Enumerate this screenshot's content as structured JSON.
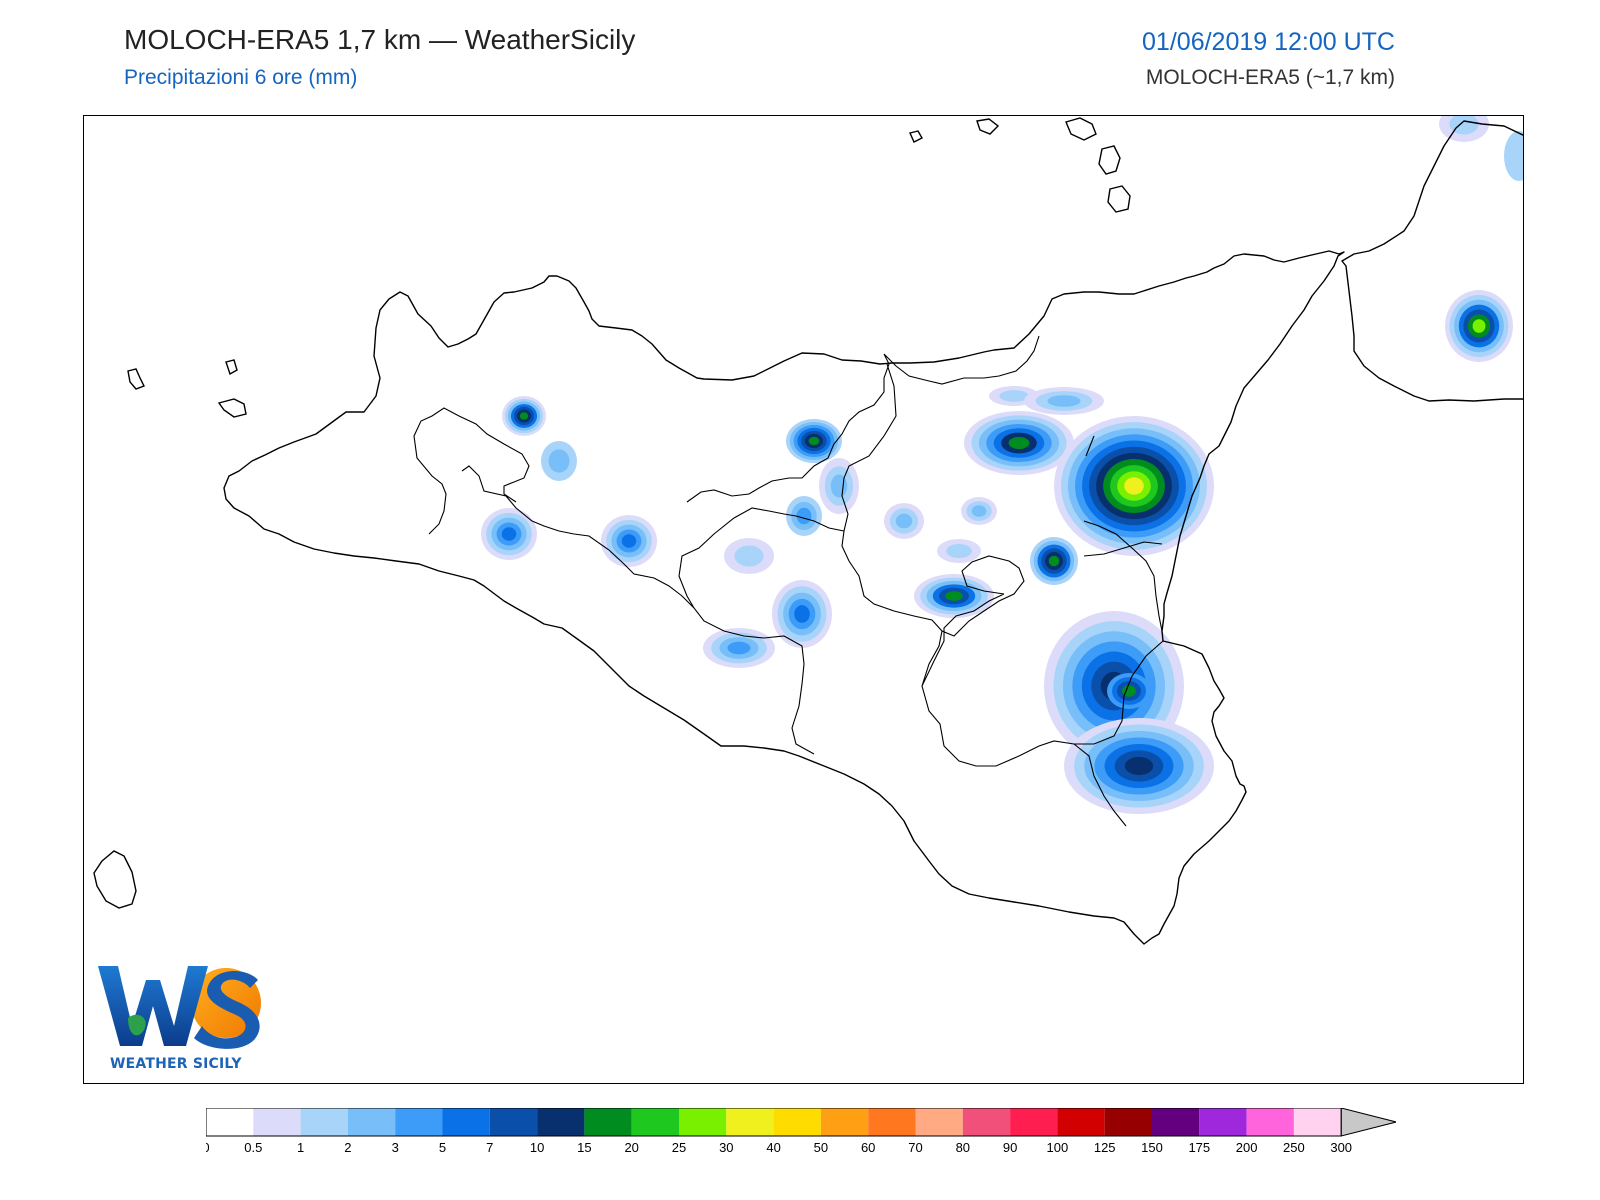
{
  "header": {
    "title": "MOLOCH-ERA5 1,7 km — WeatherSicily",
    "subtitle": "Precipitazioni 6 ore (mm)",
    "datetime": "01/06/2019 12:00 UTC",
    "model_info": "MOLOCH-ERA5 (~1,7 km)"
  },
  "logo": {
    "letters": "WS",
    "name": "WEATHER SICILY"
  },
  "colorbar": {
    "labels": [
      "0",
      "0.5",
      "1",
      "2",
      "3",
      "5",
      "7",
      "10",
      "15",
      "20",
      "25",
      "30",
      "40",
      "50",
      "60",
      "70",
      "80",
      "90",
      "100",
      "125",
      "150",
      "175",
      "200",
      "250",
      "300"
    ],
    "colors": [
      "#ffffff",
      "#dcdcfa",
      "#a8d4fa",
      "#78bef8",
      "#3c9cf8",
      "#0a72e6",
      "#0a50aa",
      "#08306e",
      "#008c1e",
      "#1ec81e",
      "#78f000",
      "#f0f01e",
      "#ffdc00",
      "#ffa014",
      "#ff7820",
      "#ffaa82",
      "#f0507a",
      "#ff1e50",
      "#d20000",
      "#960000",
      "#640080",
      "#a028dc",
      "#ff64dc",
      "#ffd2f0"
    ],
    "extend_color": "#c8c8c8"
  },
  "precip_colors": {
    "light": "#dcdcfa",
    "pale_blue": "#a8d4fa",
    "sky": "#78bef8",
    "blue": "#3c9cf8",
    "mid_blue": "#0a72e6",
    "dark_blue": "#0a50aa",
    "navy": "#08306e",
    "dark_green": "#008c1e",
    "green": "#1ec81e",
    "lime": "#78f000",
    "yellow": "#f0f01e"
  }
}
